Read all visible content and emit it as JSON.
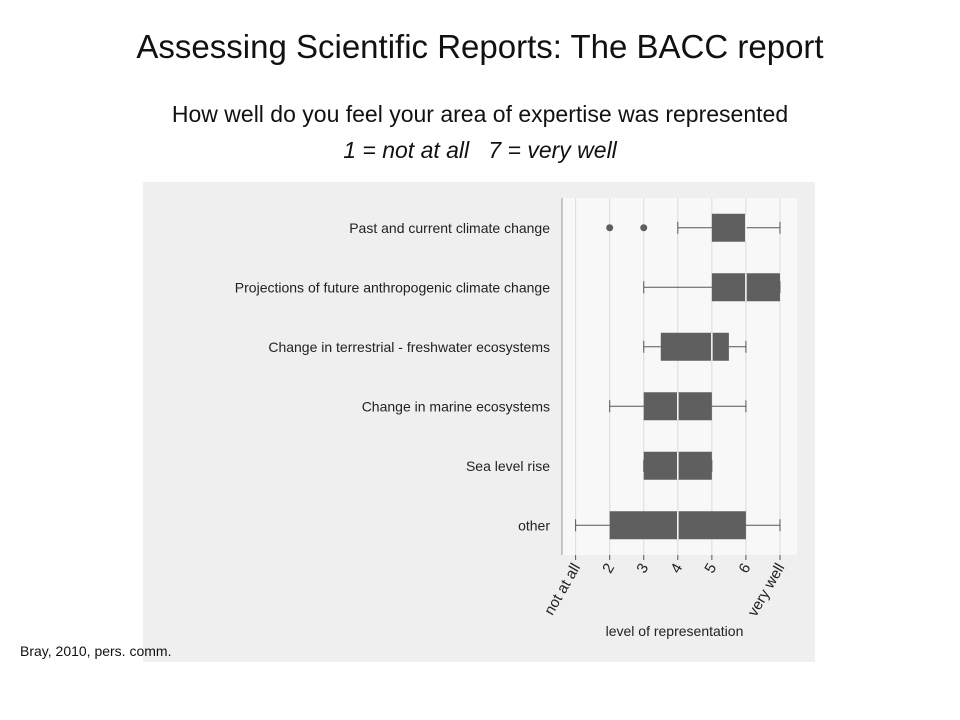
{
  "chart_data": {
    "type": "box",
    "title": "Assessing Scientific Reports: The BACC report",
    "subtitle": [
      "How well do you feel your area of expertise was represented",
      "1 = not at all   7 = very well"
    ],
    "categories": [
      "Past and current climate change",
      "Projections of future anthropogenic climate change",
      "Change in terrestrial - freshwater ecosystems",
      "Change in marine ecosystems",
      "Sea level rise",
      "other"
    ],
    "boxes": [
      {
        "min": 4,
        "q1": 5,
        "median": 6,
        "q3": 6,
        "max": 7,
        "outliers": [
          2,
          3
        ]
      },
      {
        "min": 3,
        "q1": 5,
        "median": 6,
        "q3": 7,
        "max": 7,
        "outliers": []
      },
      {
        "min": 3,
        "q1": 3.5,
        "median": 5,
        "q3": 5.5,
        "max": 6,
        "outliers": []
      },
      {
        "min": 2,
        "q1": 3,
        "median": 4,
        "q3": 5,
        "max": 6,
        "outliers": []
      },
      {
        "min": 3,
        "q1": 3,
        "median": 4,
        "q3": 5,
        "max": 5,
        "outliers": []
      },
      {
        "min": 1,
        "q1": 2,
        "median": 4,
        "q3": 6,
        "max": 7,
        "outliers": []
      }
    ],
    "color": "#5f5f5f",
    "xlabel": "level of representation",
    "xlim": [
      0.6,
      7.5
    ],
    "xticks": [
      {
        "value": 1,
        "label": "not at all"
      },
      2,
      3,
      4,
      5,
      6,
      {
        "value": 7,
        "label": "very well"
      }
    ],
    "grid": true,
    "source": "Bray, 2010, pers. comm."
  }
}
